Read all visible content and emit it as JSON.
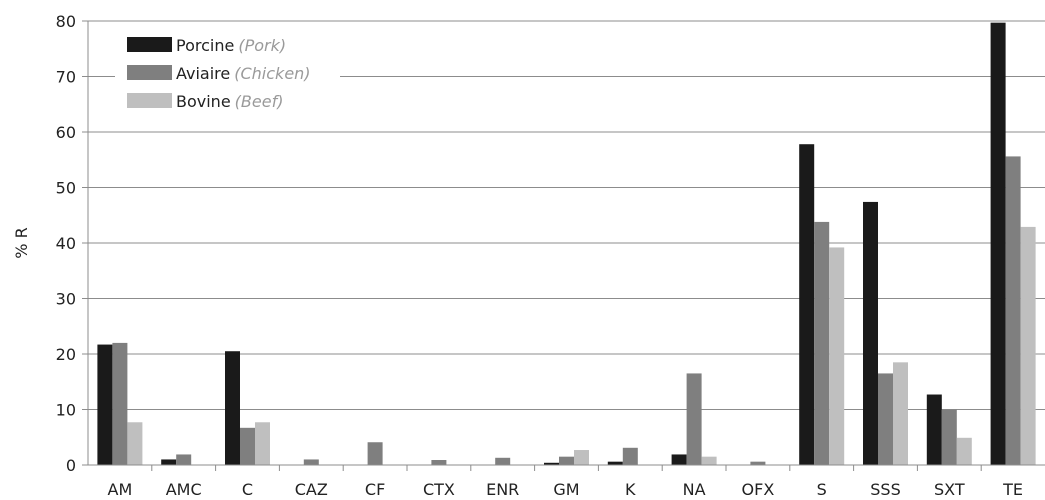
{
  "chart_data": {
    "type": "bar",
    "ylabel": "% R",
    "xlabel": "",
    "ylim": [
      0,
      80
    ],
    "yticks": [
      0,
      10,
      20,
      30,
      40,
      50,
      60,
      70,
      80
    ],
    "grid": true,
    "legend_position": "top-left",
    "categories": [
      "AM",
      "AMC",
      "C",
      "CAZ",
      "CF",
      "CTX",
      "ENR",
      "GM",
      "K",
      "NA",
      "OFX",
      "S",
      "SSS",
      "SXT",
      "TE"
    ],
    "series": [
      {
        "name": "Porcine",
        "translation": "(Pork)",
        "color": "#1a1a1a",
        "values": [
          21.7,
          1.0,
          20.5,
          0,
          0,
          0,
          0,
          0.4,
          0.6,
          1.9,
          0,
          57.8,
          47.4,
          12.7,
          79.7
        ]
      },
      {
        "name": "Aviaire",
        "translation": "(Chicken)",
        "color": "#7f7f7f",
        "values": [
          22.0,
          1.9,
          6.7,
          1.0,
          4.1,
          0.9,
          1.3,
          1.5,
          3.1,
          16.5,
          0.6,
          43.8,
          16.5,
          10.0,
          55.6
        ]
      },
      {
        "name": "Bovine",
        "translation": "(Beef)",
        "color": "#bfbfbf",
        "values": [
          7.7,
          0,
          7.7,
          0,
          0,
          0,
          0,
          2.7,
          0,
          1.5,
          0,
          39.2,
          18.5,
          4.9,
          42.9
        ]
      }
    ]
  }
}
